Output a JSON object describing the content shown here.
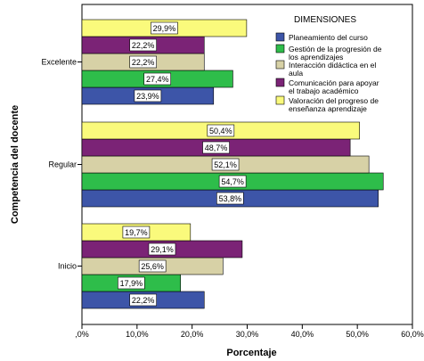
{
  "chart_data": {
    "type": "bar",
    "orientation": "horizontal",
    "grouped": true,
    "categories": [
      "Excelente",
      "Regular",
      "Inicio"
    ],
    "series": [
      {
        "name": "Planeamiento del curso",
        "color": "#3d55a8",
        "values": [
          23.9,
          53.8,
          22.2
        ],
        "labels": [
          "23,9%",
          "53,8%",
          "22,2%"
        ]
      },
      {
        "name": "Gestión de la progresión de los aprendizajes",
        "color": "#2ebd4a",
        "values": [
          27.4,
          54.7,
          17.9
        ],
        "labels": [
          "27,4%",
          "54,7%",
          "17,9%"
        ]
      },
      {
        "name": "Interacción didáctica en el aula",
        "color": "#d7d1a6",
        "values": [
          22.2,
          52.1,
          25.6
        ],
        "labels": [
          "22,2%",
          "52,1%",
          "25,6%"
        ]
      },
      {
        "name": "Comunicación para apoyar el trabajo académico",
        "color": "#7b2376",
        "values": [
          22.2,
          48.7,
          29.1
        ],
        "labels": [
          "22,2%",
          "48,7%",
          "29,1%"
        ]
      },
      {
        "name": "Valoración del progreso de enseñanza aprendizaje",
        "color": "#fafa7c",
        "values": [
          29.9,
          50.4,
          19.7
        ],
        "labels": [
          "29,9%",
          "50,4%",
          "19,7%"
        ]
      }
    ],
    "xlabel": "Porcentaje",
    "ylabel": "Competencia del docente",
    "xlim": [
      0,
      60
    ],
    "xticks": [
      ",0%",
      "10,0%",
      "20,0%",
      "30,0%",
      "40,0%",
      "50,0%",
      "60,0%"
    ],
    "legend": {
      "title": "DIMENSIONES",
      "placement": "top-right",
      "entries": [
        [
          "Planeamiento del curso"
        ],
        [
          "Gestión de la progresión de",
          "los aprendizajes"
        ],
        [
          "Interacción didáctica en el",
          "aula"
        ],
        [
          "Comunicación para apoyar",
          "el trabajo académico"
        ],
        [
          "Valoración del progreso de",
          "enseñanza aprendizaje"
        ]
      ]
    },
    "grid": false
  }
}
